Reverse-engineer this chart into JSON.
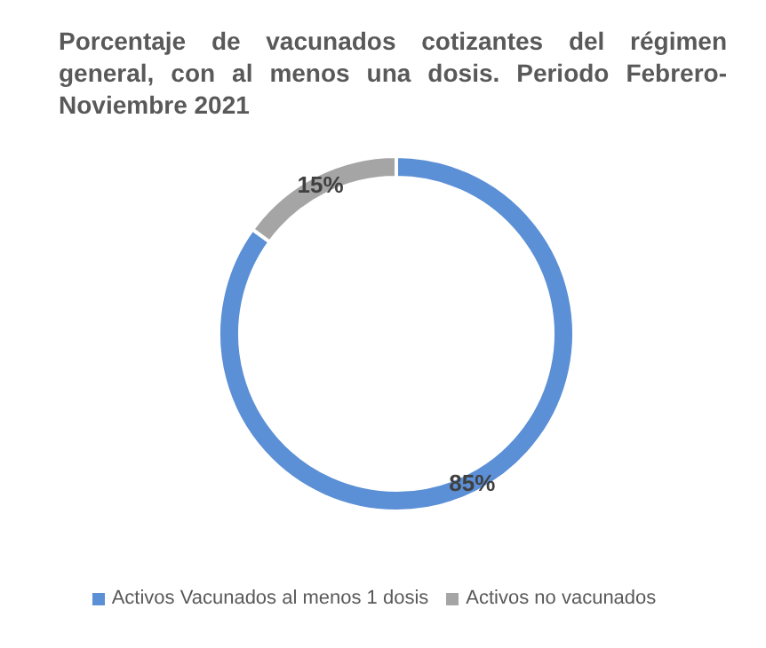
{
  "chart_data": {
    "type": "donut",
    "title": "Porcentaje de vacunados cotizantes del régimen general, con al menos una dosis. Periodo Febrero-Noviembre 2021",
    "categories": [
      "Activos Vacunados al menos 1 dosis",
      "Activos no vacunados"
    ],
    "values": [
      85,
      15
    ],
    "colors": [
      "#5b8fd6",
      "#a5a5a5"
    ],
    "value_labels": [
      "85%",
      "15%"
    ],
    "legend": "bottom"
  }
}
